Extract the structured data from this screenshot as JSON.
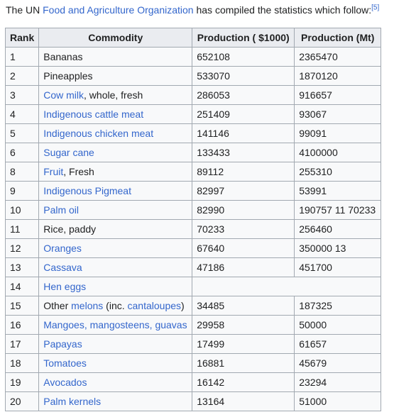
{
  "intro": {
    "prefix": "The UN ",
    "link": "Food and Agriculture Organization",
    "suffix": " has compiled the statistics which follow:",
    "ref": "[5]"
  },
  "table": {
    "headers": [
      "Rank",
      "Commodity",
      "Production ( $1000)",
      "Production (Mt)"
    ],
    "rows": [
      {
        "rank": "1",
        "commodity": [
          {
            "t": "Bananas",
            "link": false
          }
        ],
        "value": "652108",
        "mt": "2365470"
      },
      {
        "rank": "2",
        "commodity": [
          {
            "t": "Pineapples",
            "link": false
          }
        ],
        "value": "533070",
        "mt": "1870120"
      },
      {
        "rank": "3",
        "commodity": [
          {
            "t": "Cow milk",
            "link": true
          },
          {
            "t": ", whole, fresh",
            "link": false
          }
        ],
        "value": "286053",
        "mt": "916657"
      },
      {
        "rank": "4",
        "commodity": [
          {
            "t": "Indigenous cattle meat",
            "link": true
          }
        ],
        "value": "251409",
        "mt": "93067"
      },
      {
        "rank": "5",
        "commodity": [
          {
            "t": "Indigenous chicken meat",
            "link": true
          }
        ],
        "value": "141146",
        "mt": "99091"
      },
      {
        "rank": "6",
        "commodity": [
          {
            "t": "Sugar cane",
            "link": true
          }
        ],
        "value": "133433",
        "mt": "4100000"
      },
      {
        "rank": "8",
        "commodity": [
          {
            "t": "Fruit",
            "link": true
          },
          {
            "t": ", Fresh",
            "link": false
          }
        ],
        "value": "89112",
        "mt": "255310"
      },
      {
        "rank": "9",
        "commodity": [
          {
            "t": "Indigenous Pigmeat",
            "link": true
          }
        ],
        "value": "82997",
        "mt": "53991"
      },
      {
        "rank": "10",
        "commodity": [
          {
            "t": "Palm oil",
            "link": true
          }
        ],
        "value": "82990",
        "mt": "190757 11 70233"
      },
      {
        "rank": "11",
        "commodity": [
          {
            "t": "Rice, paddy",
            "link": false
          }
        ],
        "value": "70233",
        "mt": "256460"
      },
      {
        "rank": "12",
        "commodity": [
          {
            "t": "Oranges",
            "link": true
          }
        ],
        "value": "67640",
        "mt": "350000 13"
      },
      {
        "rank": "13",
        "commodity": [
          {
            "t": "Cassava",
            "link": true
          }
        ],
        "value": "47186",
        "mt": "451700"
      },
      {
        "rank": "14",
        "commodity": [
          {
            "t": "Hen eggs",
            "link": true
          }
        ],
        "merged": true
      },
      {
        "rank": "15",
        "commodity": [
          {
            "t": "Other ",
            "link": false
          },
          {
            "t": "melons",
            "link": true
          },
          {
            "t": " (inc. ",
            "link": false
          },
          {
            "t": "cantaloupes",
            "link": true
          },
          {
            "t": ")",
            "link": false
          }
        ],
        "value": "34485",
        "mt": "187325"
      },
      {
        "rank": "16",
        "commodity": [
          {
            "t": "Mangoes, mangosteens, guavas",
            "link": true
          }
        ],
        "value": "29958",
        "mt": "50000"
      },
      {
        "rank": "17",
        "commodity": [
          {
            "t": "Papayas",
            "link": true
          }
        ],
        "value": "17499",
        "mt": "61657"
      },
      {
        "rank": "18",
        "commodity": [
          {
            "t": "Tomatoes",
            "link": true
          }
        ],
        "value": "16881",
        "mt": "45679"
      },
      {
        "rank": "19",
        "commodity": [
          {
            "t": "Avocados",
            "link": true
          }
        ],
        "value": "16142",
        "mt": "23294"
      },
      {
        "rank": "20",
        "commodity": [
          {
            "t": "Palm kernels",
            "link": true
          }
        ],
        "value": "13164",
        "mt": "51000"
      }
    ]
  },
  "colors": {
    "link": "#3366cc",
    "header_bg": "#eaecf0",
    "cell_bg": "#f8f9fa",
    "border": "#a2a9b1"
  }
}
